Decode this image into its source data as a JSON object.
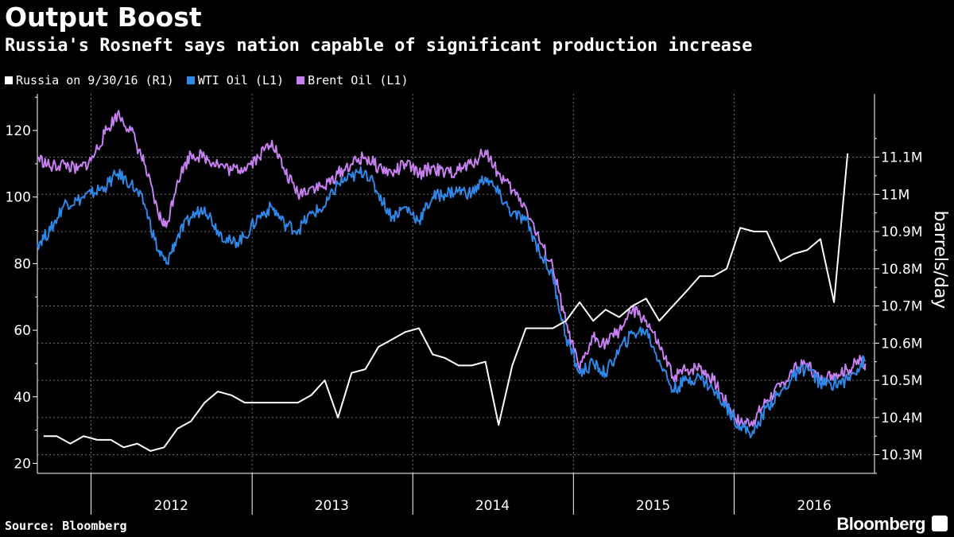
{
  "header": {
    "title": "Output Boost",
    "subtitle": "Russia's Rosneft says nation capable of significant production increase"
  },
  "footer": {
    "source": "Source: Bloomberg",
    "logo": "Bloomberg"
  },
  "colors": {
    "background": "#000000",
    "russia": "#ffffff",
    "wti": "#2e86e6",
    "brent": "#c67ff0",
    "grid": "#6e6e6e"
  },
  "chart_data": {
    "type": "line",
    "left_axis": {
      "ticks": [
        20,
        40,
        60,
        80,
        100,
        120
      ],
      "range": [
        17,
        131
      ]
    },
    "right_axis": {
      "ticks": [
        10.3,
        10.4,
        10.5,
        10.6,
        10.7,
        10.8,
        10.9,
        11.0,
        11.1
      ],
      "tick_labels": [
        "10.3M",
        "10.4M",
        "10.5M",
        "10.6M",
        "10.7M",
        "10.8M",
        "10.9M",
        "11M",
        "11.1M"
      ],
      "range": [
        10.25,
        11.27
      ],
      "label": "barrels/day"
    },
    "x_axis": {
      "range": [
        "2011-09-01",
        "2016-11-15"
      ],
      "year_labels": [
        {
          "label": "2012",
          "mid": "2012-07-01"
        },
        {
          "label": "2013",
          "mid": "2013-07-01"
        },
        {
          "label": "2014",
          "mid": "2014-07-01"
        },
        {
          "label": "2015",
          "mid": "2015-07-01"
        },
        {
          "label": "2016",
          "mid": "2016-07-01"
        }
      ],
      "year_boundaries": [
        "2012-01-01",
        "2013-01-01",
        "2014-01-01",
        "2015-01-01",
        "2016-01-01"
      ]
    },
    "grid": true,
    "series": [
      {
        "name": "Russia on 9/30/16 (R1)",
        "axis": "right",
        "color": "#ffffff",
        "points": [
          [
            "2011-09-15",
            10.35
          ],
          [
            "2011-10-15",
            10.35
          ],
          [
            "2011-11-15",
            10.33
          ],
          [
            "2011-12-15",
            10.35
          ],
          [
            "2012-01-15",
            10.34
          ],
          [
            "2012-02-15",
            10.34
          ],
          [
            "2012-03-15",
            10.32
          ],
          [
            "2012-04-15",
            10.33
          ],
          [
            "2012-05-15",
            10.31
          ],
          [
            "2012-06-15",
            10.32
          ],
          [
            "2012-07-15",
            10.37
          ],
          [
            "2012-08-15",
            10.39
          ],
          [
            "2012-09-15",
            10.44
          ],
          [
            "2012-10-15",
            10.47
          ],
          [
            "2012-11-15",
            10.46
          ],
          [
            "2012-12-15",
            10.44
          ],
          [
            "2013-01-15",
            10.44
          ],
          [
            "2013-02-15",
            10.44
          ],
          [
            "2013-03-15",
            10.44
          ],
          [
            "2013-04-15",
            10.44
          ],
          [
            "2013-05-15",
            10.46
          ],
          [
            "2013-06-15",
            10.5
          ],
          [
            "2013-07-15",
            10.4
          ],
          [
            "2013-08-15",
            10.52
          ],
          [
            "2013-09-15",
            10.53
          ],
          [
            "2013-10-15",
            10.59
          ],
          [
            "2013-11-15",
            10.61
          ],
          [
            "2013-12-15",
            10.63
          ],
          [
            "2014-01-15",
            10.64
          ],
          [
            "2014-02-15",
            10.57
          ],
          [
            "2014-03-15",
            10.56
          ],
          [
            "2014-04-15",
            10.54
          ],
          [
            "2014-05-15",
            10.54
          ],
          [
            "2014-06-15",
            10.55
          ],
          [
            "2014-07-15",
            10.38
          ],
          [
            "2014-08-15",
            10.54
          ],
          [
            "2014-09-15",
            10.64
          ],
          [
            "2014-10-15",
            10.64
          ],
          [
            "2014-11-15",
            10.64
          ],
          [
            "2014-12-15",
            10.66
          ],
          [
            "2015-01-15",
            10.71
          ],
          [
            "2015-02-15",
            10.66
          ],
          [
            "2015-03-15",
            10.69
          ],
          [
            "2015-04-15",
            10.67
          ],
          [
            "2015-05-15",
            10.7
          ],
          [
            "2015-06-15",
            10.72
          ],
          [
            "2015-07-15",
            10.66
          ],
          [
            "2015-08-15",
            10.7
          ],
          [
            "2015-09-15",
            10.74
          ],
          [
            "2015-10-15",
            10.78
          ],
          [
            "2015-11-15",
            10.78
          ],
          [
            "2015-12-15",
            10.8
          ],
          [
            "2016-01-15",
            10.91
          ],
          [
            "2016-02-15",
            10.9
          ],
          [
            "2016-03-15",
            10.9
          ],
          [
            "2016-04-15",
            10.82
          ],
          [
            "2016-05-15",
            10.84
          ],
          [
            "2016-06-15",
            10.85
          ],
          [
            "2016-07-15",
            10.88
          ],
          [
            "2016-08-15",
            10.71
          ],
          [
            "2016-09-15",
            11.11
          ]
        ]
      },
      {
        "name": "WTI Oil (L1)",
        "axis": "left",
        "color": "#2e86e6",
        "points": [
          [
            "2011-09-01",
            86
          ],
          [
            "2011-10-01",
            90
          ],
          [
            "2011-11-01",
            98
          ],
          [
            "2011-12-01",
            99
          ],
          [
            "2012-01-01",
            101
          ],
          [
            "2012-02-01",
            103
          ],
          [
            "2012-03-01",
            107
          ],
          [
            "2012-04-01",
            104
          ],
          [
            "2012-05-01",
            98
          ],
          [
            "2012-06-01",
            84
          ],
          [
            "2012-06-20",
            80
          ],
          [
            "2012-07-15",
            88
          ],
          [
            "2012-08-15",
            94
          ],
          [
            "2012-09-15",
            97
          ],
          [
            "2012-10-15",
            90
          ],
          [
            "2012-11-15",
            86
          ],
          [
            "2012-12-15",
            88
          ],
          [
            "2013-01-15",
            94
          ],
          [
            "2013-02-15",
            97
          ],
          [
            "2013-03-15",
            92
          ],
          [
            "2013-04-15",
            90
          ],
          [
            "2013-05-15",
            95
          ],
          [
            "2013-06-15",
            97
          ],
          [
            "2013-07-15",
            104
          ],
          [
            "2013-08-15",
            106
          ],
          [
            "2013-09-15",
            108
          ],
          [
            "2013-10-15",
            101
          ],
          [
            "2013-11-15",
            94
          ],
          [
            "2013-12-15",
            97
          ],
          [
            "2014-01-15",
            93
          ],
          [
            "2014-02-15",
            100
          ],
          [
            "2014-03-15",
            101
          ],
          [
            "2014-04-15",
            102
          ],
          [
            "2014-05-15",
            101
          ],
          [
            "2014-06-15",
            106
          ],
          [
            "2014-07-15",
            101
          ],
          [
            "2014-08-15",
            95
          ],
          [
            "2014-09-15",
            93
          ],
          [
            "2014-10-15",
            84
          ],
          [
            "2014-11-15",
            76
          ],
          [
            "2014-12-15",
            58
          ],
          [
            "2015-01-15",
            47
          ],
          [
            "2015-02-15",
            50
          ],
          [
            "2015-03-15",
            47
          ],
          [
            "2015-04-15",
            54
          ],
          [
            "2015-05-15",
            59
          ],
          [
            "2015-06-15",
            60
          ],
          [
            "2015-07-15",
            51
          ],
          [
            "2015-08-15",
            42
          ],
          [
            "2015-09-15",
            45
          ],
          [
            "2015-10-15",
            46
          ],
          [
            "2015-11-15",
            42
          ],
          [
            "2015-12-15",
            37
          ],
          [
            "2016-01-15",
            31
          ],
          [
            "2016-02-15",
            29
          ],
          [
            "2016-03-15",
            37
          ],
          [
            "2016-04-15",
            41
          ],
          [
            "2016-05-15",
            46
          ],
          [
            "2016-06-15",
            49
          ],
          [
            "2016-07-15",
            44
          ],
          [
            "2016-08-15",
            44
          ],
          [
            "2016-09-15",
            45
          ],
          [
            "2016-10-15",
            50
          ],
          [
            "2016-10-25",
            51
          ]
        ]
      },
      {
        "name": "Brent Oil (L1)",
        "axis": "left",
        "color": "#c67ff0",
        "points": [
          [
            "2011-09-01",
            112
          ],
          [
            "2011-10-01",
            109
          ],
          [
            "2011-11-01",
            110
          ],
          [
            "2011-12-01",
            108
          ],
          [
            "2012-01-01",
            111
          ],
          [
            "2012-02-01",
            119
          ],
          [
            "2012-03-01",
            125
          ],
          [
            "2012-04-01",
            120
          ],
          [
            "2012-05-01",
            110
          ],
          [
            "2012-06-01",
            95
          ],
          [
            "2012-06-20",
            91
          ],
          [
            "2012-07-15",
            105
          ],
          [
            "2012-08-15",
            113
          ],
          [
            "2012-09-15",
            112
          ],
          [
            "2012-10-15",
            110
          ],
          [
            "2012-11-15",
            108
          ],
          [
            "2012-12-15",
            109
          ],
          [
            "2013-01-15",
            112
          ],
          [
            "2013-02-15",
            117
          ],
          [
            "2013-03-15",
            108
          ],
          [
            "2013-04-15",
            101
          ],
          [
            "2013-05-15",
            103
          ],
          [
            "2013-06-15",
            103
          ],
          [
            "2013-07-15",
            107
          ],
          [
            "2013-08-15",
            110
          ],
          [
            "2013-09-15",
            112
          ],
          [
            "2013-10-15",
            109
          ],
          [
            "2013-11-15",
            107
          ],
          [
            "2013-12-15",
            110
          ],
          [
            "2014-01-15",
            107
          ],
          [
            "2014-02-15",
            109
          ],
          [
            "2014-03-15",
            107
          ],
          [
            "2014-04-15",
            108
          ],
          [
            "2014-05-15",
            110
          ],
          [
            "2014-06-15",
            114
          ],
          [
            "2014-07-15",
            107
          ],
          [
            "2014-08-15",
            102
          ],
          [
            "2014-09-15",
            97
          ],
          [
            "2014-10-15",
            87
          ],
          [
            "2014-11-15",
            79
          ],
          [
            "2014-12-15",
            62
          ],
          [
            "2015-01-15",
            48
          ],
          [
            "2015-02-15",
            58
          ],
          [
            "2015-03-15",
            56
          ],
          [
            "2015-04-15",
            60
          ],
          [
            "2015-05-15",
            66
          ],
          [
            "2015-06-15",
            63
          ],
          [
            "2015-07-15",
            55
          ],
          [
            "2015-08-15",
            46
          ],
          [
            "2015-09-15",
            48
          ],
          [
            "2015-10-15",
            49
          ],
          [
            "2015-11-15",
            45
          ],
          [
            "2015-12-15",
            38
          ],
          [
            "2016-01-15",
            32
          ],
          [
            "2016-02-15",
            33
          ],
          [
            "2016-03-15",
            39
          ],
          [
            "2016-04-15",
            43
          ],
          [
            "2016-05-15",
            48
          ],
          [
            "2016-06-15",
            50
          ],
          [
            "2016-07-15",
            45
          ],
          [
            "2016-08-15",
            47
          ],
          [
            "2016-09-15",
            48
          ],
          [
            "2016-10-15",
            51
          ],
          [
            "2016-10-25",
            50
          ]
        ]
      }
    ]
  }
}
